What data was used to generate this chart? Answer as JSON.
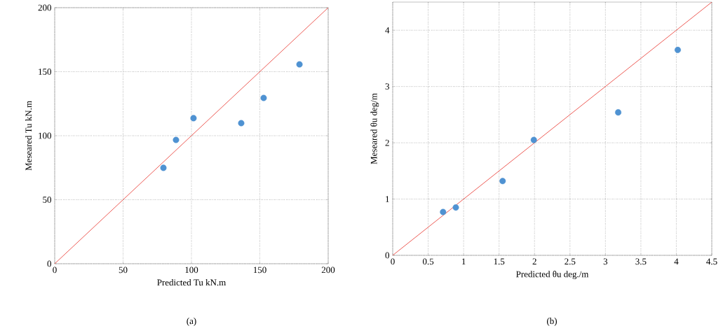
{
  "chart_data": [
    {
      "type": "scatter",
      "xlabel": "Predicted Tu kN.m",
      "ylabel": "Meseared Tu kN.m",
      "annotations": [
        "(a)"
      ],
      "xlim": [
        0,
        200
      ],
      "ylim": [
        0,
        200
      ],
      "xticks": [
        0,
        50,
        100,
        150,
        200
      ],
      "yticks": [
        0,
        50,
        100,
        150,
        200
      ],
      "grid": true,
      "series": [
        {
          "x": [
            79.5,
            88.7,
            101.5,
            136.4,
            152.8,
            179
          ],
          "values": [
            74.9,
            96.7,
            113.7,
            109.8,
            129.5,
            155.7
          ],
          "color": "#4f92d2",
          "marker": "circle"
        },
        {
          "type": "line",
          "x": [
            0,
            200
          ],
          "values": [
            0,
            200
          ],
          "color": "#e8312a",
          "marker": "none"
        }
      ]
    },
    {
      "type": "scatter",
      "xlabel": "Predicted θu deg./m",
      "ylabel": "Meseared θu deg/m",
      "annotations": [
        "(b)"
      ],
      "xlim": [
        0,
        4.5
      ],
      "ylim": [
        0,
        4.5
      ],
      "xticks": [
        0,
        0.5,
        1,
        1.5,
        2,
        2.5,
        3,
        3.5,
        4,
        4.5
      ],
      "yticks": [
        0,
        1,
        2,
        3,
        4
      ],
      "grid": true,
      "series": [
        {
          "x": [
            0.71,
            0.89,
            1.55,
            1.99,
            3.18,
            4.02
          ],
          "values": [
            0.77,
            0.85,
            1.32,
            2.05,
            2.54,
            3.65
          ],
          "color": "#4f92d2",
          "marker": "circle"
        },
        {
          "type": "line",
          "x": [
            0,
            4.5
          ],
          "values": [
            0,
            4.5
          ],
          "color": "#e8312a",
          "marker": "none"
        }
      ]
    }
  ]
}
